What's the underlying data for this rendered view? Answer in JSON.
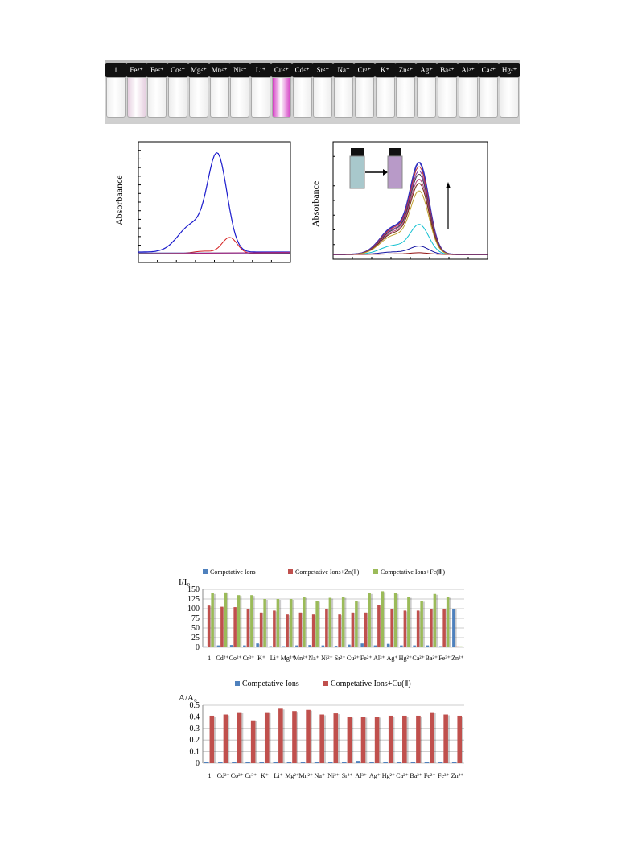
{
  "vials": {
    "labels": [
      "1",
      "Fe³⁺",
      "Fe²⁺",
      "Co²⁺",
      "Mg²⁺",
      "Mn²⁺",
      "Ni²⁺",
      "Li⁺",
      "Cu²⁺",
      "Cd²⁺",
      "Sr²⁺",
      "Na⁺",
      "Cr³⁺",
      "K⁺",
      "Zn²⁺",
      "Ag⁺",
      "Ba²⁺",
      "Al³⁺",
      "Ca²⁺",
      "Hg²⁺"
    ],
    "colors": [
      "#eeeeee",
      "#e6cfe0",
      "#eeeeee",
      "#ececec",
      "#eeeeee",
      "#ededed",
      "#eeeeee",
      "#efefef",
      "#d43fc4",
      "#eeeeee",
      "#eeeeee",
      "#eeeeee",
      "#ececec",
      "#eeeeee",
      "#efefef",
      "#eeeeee",
      "#eeeeee",
      "#eeeeee",
      "#eeeeee",
      "#eeeeee"
    ],
    "highlight_color": "#d43fc4"
  },
  "panel_left": {
    "ylabel": "Absorbaance",
    "line_colors": [
      "#1a1acc",
      "#d42020",
      "#2020a0",
      "#808080",
      "#aa2080"
    ]
  },
  "panel_right": {
    "ylabel": "Absorbance",
    "line_colors": [
      "#3030c0",
      "#c03030",
      "#8030a0",
      "#404040",
      "#b04080",
      "#703010",
      "#c0a030",
      "#10c0d0",
      "#1010a0",
      "#901010"
    ],
    "inset_vial_colors": [
      "#a8c8cc",
      "#b89ac8"
    ]
  },
  "chart_data": [
    {
      "type": "bar",
      "ylabel": "I/I₀",
      "yticks": [
        "0",
        "25",
        "50",
        "75",
        "100",
        "125",
        "150"
      ],
      "ylim": [
        0,
        150
      ],
      "categories": [
        "1",
        "Cd²⁺",
        "Co²⁺",
        "Cr³⁺",
        "K⁺",
        "Li⁺",
        "Mg²⁺",
        "Mn²⁺",
        "Na⁺",
        "Ni²⁺",
        "Sr²⁺",
        "Cu²⁺",
        "Fe²⁺",
        "Al³⁺",
        "Ag⁺",
        "Hg²⁺",
        "Ca²⁺",
        "Ba²⁺",
        "Fe³⁺",
        "Zn²⁺"
      ],
      "series": [
        {
          "name": "Competative Ions",
          "color": "#4f81bd",
          "values": [
            2,
            5,
            6,
            5,
            10,
            3,
            3,
            5,
            6,
            5,
            4,
            7,
            10,
            5,
            9,
            5,
            5,
            5,
            3,
            100
          ]
        },
        {
          "name": "Competative Ions+Zn(Ⅱ)",
          "color": "#c0504d",
          "values": [
            108,
            105,
            104,
            100,
            90,
            95,
            85,
            90,
            85,
            100,
            85,
            90,
            90,
            110,
            100,
            95,
            95,
            100,
            100,
            0
          ]
        },
        {
          "name": "Competative Ions+Fe(Ⅲ)",
          "color": "#9bbb59",
          "values": [
            140,
            142,
            135,
            135,
            125,
            125,
            125,
            130,
            120,
            128,
            130,
            120,
            140,
            145,
            140,
            130,
            120,
            138,
            130,
            0
          ]
        }
      ]
    },
    {
      "type": "bar",
      "ylabel": "A/A₀",
      "yticks": [
        "0",
        "0.1",
        "0.2",
        "0.3",
        "0.4",
        "0.5"
      ],
      "ylim": [
        0,
        0.5
      ],
      "categories": [
        "1",
        "Cd²⁺",
        "Co²⁺",
        "Cr³⁺",
        "K⁺",
        "Li⁺",
        "Mg²⁺",
        "Mn²⁺",
        "Na⁺",
        "Ni²⁺",
        "Sr²⁺",
        "Al³⁺",
        "Ag⁺",
        "Hg²⁺",
        "Ca²⁺",
        "Ba²⁺",
        "Fe²⁺",
        "Fe³⁺",
        "Zn²⁺"
      ],
      "series": [
        {
          "name": "Competative Ions",
          "color": "#4f81bd",
          "values": [
            0,
            0,
            0,
            0.01,
            0,
            0,
            0,
            0,
            0,
            0,
            0,
            0.02,
            0,
            0,
            0,
            0,
            0.01,
            0,
            0.01
          ]
        },
        {
          "name": "Competative Ions+Cu(Ⅱ)",
          "color": "#c0504d",
          "values": [
            0.41,
            0.42,
            0.44,
            0.37,
            0.44,
            0.47,
            0.45,
            0.46,
            0.42,
            0.43,
            0.4,
            0.4,
            0.4,
            0.41,
            0.41,
            0.41,
            0.44,
            0.42,
            0.41
          ]
        }
      ]
    }
  ]
}
